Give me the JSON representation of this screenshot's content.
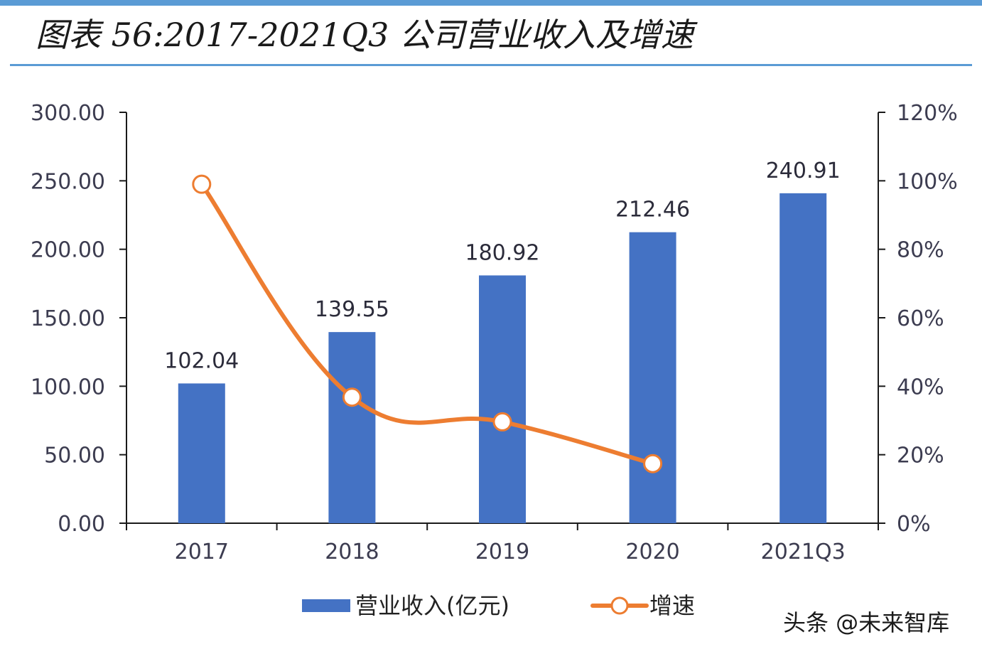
{
  "title": "图表 56:2017-2021Q3 公司营业收入及增速",
  "watermark": "头条 @未来智库",
  "colors": {
    "bar": "#4472c4",
    "line": "#ed7d31",
    "axis": "#1a1a1a",
    "text": "#3c3c50",
    "accent_rule": "#5b9bd5"
  },
  "chart_data": {
    "type": "bar+line",
    "categories": [
      "2017",
      "2018",
      "2019",
      "2020",
      "2021Q3"
    ],
    "series": [
      {
        "name": "营业收入(亿元)",
        "type": "bar",
        "axis": "left",
        "values": [
          102.04,
          139.55,
          180.92,
          212.46,
          240.91
        ],
        "labels": [
          "102.04",
          "139.55",
          "180.92",
          "212.46",
          "240.91"
        ]
      },
      {
        "name": "增速",
        "type": "line",
        "axis": "right",
        "values": [
          0.99,
          0.368,
          0.296,
          0.174,
          null
        ]
      }
    ],
    "left_axis": {
      "min": 0,
      "max": 300,
      "ticks": [
        "0.00",
        "50.00",
        "100.00",
        "150.00",
        "200.00",
        "250.00",
        "300.00"
      ]
    },
    "right_axis": {
      "min": 0,
      "max": 1.2,
      "ticks": [
        "0%",
        "20%",
        "40%",
        "60%",
        "80%",
        "100%",
        "120%"
      ]
    },
    "legend": {
      "bar_label": "营业收入(亿元)",
      "line_label": "增速",
      "position": "bottom"
    }
  }
}
